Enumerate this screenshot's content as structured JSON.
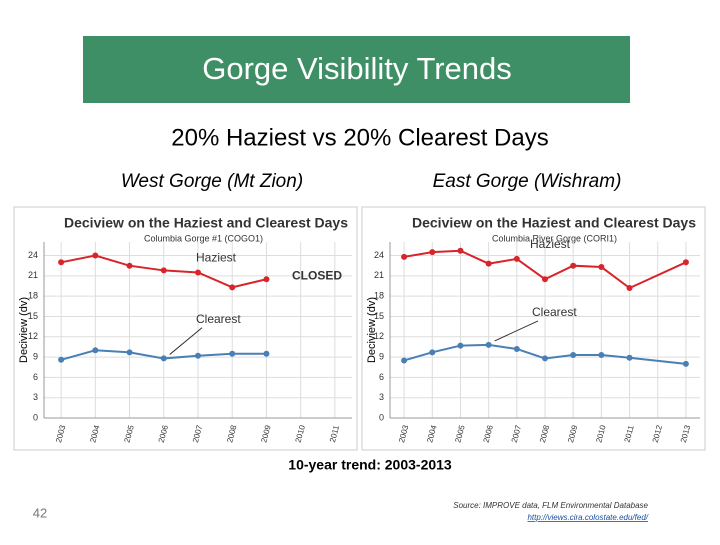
{
  "slide": {
    "title": "Gorge Visibility Trends",
    "subtitle": "20% Haziest vs 20% Clearest Days",
    "panel_labels": [
      "West Gorge (Mt Zion)",
      "East Gorge (Wishram)"
    ],
    "trend_note": "10-year trend:  2003-2013",
    "page_number": "42",
    "source": "Source:  IMPROVE data, FLM Environmental Database",
    "source_url": "http://views.cira.colostate.edu/fed/"
  },
  "chart_data": [
    {
      "type": "line",
      "title": "Deciview on the Haziest and Clearest Days",
      "subtitle": "Columbia Gorge #1 (COGO1)",
      "y_label": "Deciview (dv)",
      "x": [
        2003,
        2004,
        2005,
        2006,
        2007,
        2008,
        2009
      ],
      "series": [
        {
          "name": "Haziest",
          "color": "#d7252b",
          "values": [
            23,
            24,
            22.5,
            21.8,
            21.5,
            19.3,
            20.5
          ]
        },
        {
          "name": "Clearest",
          "color": "#4a7fb5",
          "values": [
            8.6,
            10,
            9.7,
            8.8,
            9.2,
            9.5,
            9.5
          ]
        }
      ],
      "annotations": [
        "CLOSED"
      ],
      "xlim": [
        2002.5,
        2011.5
      ],
      "xticks": [
        2003,
        2004,
        2005,
        2006,
        2007,
        2008,
        2009,
        2010,
        2011
      ],
      "ylim": [
        0,
        26
      ],
      "yticks": [
        0,
        3,
        6,
        9,
        12,
        15,
        18,
        21,
        24
      ],
      "grid": true
    },
    {
      "type": "line",
      "title": "Deciview on the Haziest and Clearest Days",
      "subtitle": "Columbia River Gorge (CORI1)",
      "y_label": "Deciview (dv)",
      "x": [
        2003,
        2004,
        2005,
        2006,
        2007,
        2008,
        2009,
        2010,
        2011,
        2013
      ],
      "series": [
        {
          "name": "Haziest",
          "color": "#d7252b",
          "values": [
            23.8,
            24.5,
            24.7,
            22.8,
            23.5,
            20.5,
            22.5,
            22.3,
            19.2,
            23
          ]
        },
        {
          "name": "Clearest",
          "color": "#4a7fb5",
          "values": [
            8.5,
            9.7,
            10.7,
            10.8,
            10.2,
            8.8,
            9.3,
            9.3,
            8.9,
            8
          ]
        }
      ],
      "annotations": [],
      "xlim": [
        2002.5,
        2013.5
      ],
      "xticks": [
        2003,
        2004,
        2005,
        2006,
        2007,
        2008,
        2009,
        2010,
        2011,
        2012,
        2013
      ],
      "ylim": [
        0,
        26
      ],
      "yticks": [
        0,
        3,
        6,
        9,
        12,
        15,
        18,
        21,
        24
      ],
      "grid": true
    }
  ]
}
